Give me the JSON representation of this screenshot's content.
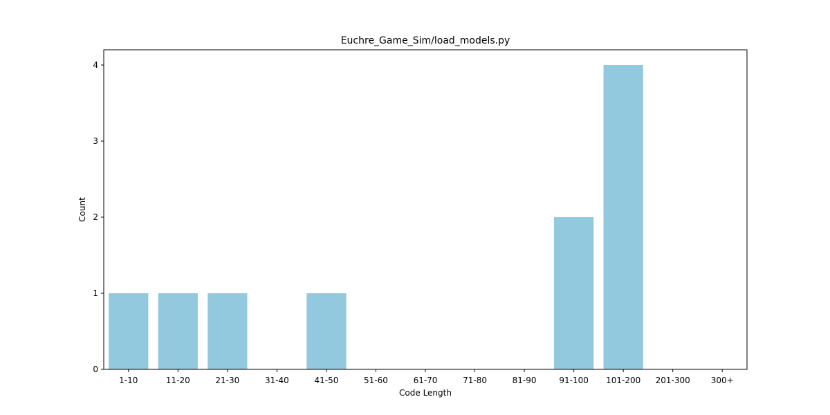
{
  "chart_data": {
    "type": "bar",
    "title": "Euchre_Game_Sim/load_models.py",
    "xlabel": "Code Length",
    "ylabel": "Count",
    "categories": [
      "1-10",
      "11-20",
      "21-30",
      "31-40",
      "41-50",
      "51-60",
      "61-70",
      "71-80",
      "81-90",
      "91-100",
      "101-200",
      "201-300",
      "300+"
    ],
    "values": [
      1,
      1,
      1,
      0,
      1,
      0,
      0,
      0,
      0,
      2,
      4,
      0,
      0
    ],
    "ylim": [
      0,
      4.2
    ],
    "yticks": [
      0,
      1,
      2,
      3,
      4
    ],
    "bar_color": "#92c9de",
    "grid": false,
    "legend": "none"
  }
}
